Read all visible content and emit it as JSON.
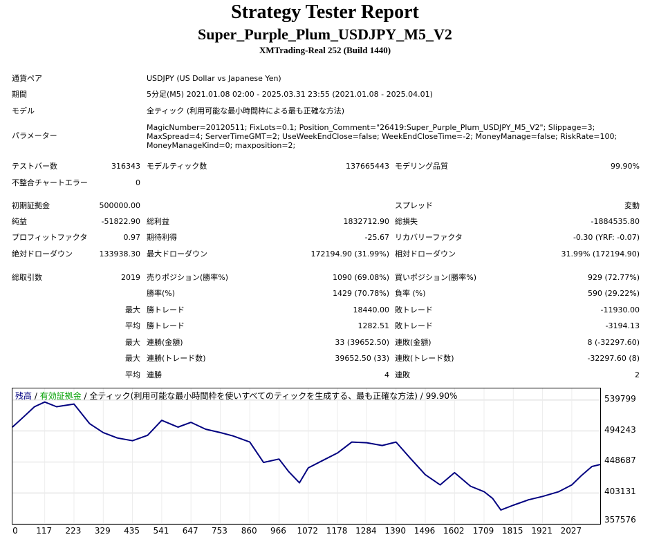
{
  "header": {
    "title": "Strategy Tester Report",
    "subtitle": "Super_Purple_Plum_USDJPY_M5_V2",
    "server": "XMTrading-Real 252 (Build 1440)"
  },
  "info": {
    "pair_label": "通貨ペア",
    "pair_value": "USDJPY (US Dollar vs Japanese Yen)",
    "period_label": "期間",
    "period_value": "5分足(M5) 2021.01.08 02:00 - 2025.03.31 23:55 (2021.01.08 - 2025.04.01)",
    "model_label": "モデル",
    "model_value": "全ティック (利用可能な最小時間枠による最も正確な方法)",
    "params_label": "パラメーター",
    "params_line1": "MagicNumber=20120511; FixLots=0.1; Position_Comment=\"26419:Super_Purple_Plum_USDJPY_M5_V2\"; Slippage=3;",
    "params_line2": "MaxSpread=4; ServerTimeGMT=2; UseWeekEndClose=false; WeekEndCloseTime=-2; MoneyManage=false; RiskRate=100;",
    "params_line3": "MoneyManageKind=0; maxposition=2;"
  },
  "stats": {
    "test_bars_label": "テストバー数",
    "test_bars": "316343",
    "model_ticks_label": "モデルティック数",
    "model_ticks": "137665443",
    "model_quality_label": "モデリング品質",
    "model_quality": "99.90%",
    "mismatch_label": "不整合チャートエラー",
    "mismatch": "0",
    "deposit_label": "初期証拠金",
    "deposit": "500000.00",
    "spread_label": "スプレッド",
    "spread": "変動",
    "net_label": "純益",
    "net": "-51822.90",
    "gross_profit_label": "総利益",
    "gross_profit": "1832712.90",
    "gross_loss_label": "総損失",
    "gross_loss": "-1884535.80",
    "pf_label": "プロフィットファクタ",
    "pf": "0.97",
    "expected_label": "期待利得",
    "expected": "-25.67",
    "recovery_label": "リカバリーファクタ",
    "recovery": "-0.30 (YRF: -0.07)",
    "abs_dd_label": "絶対ドローダウン",
    "abs_dd": "133938.30",
    "max_dd_label": "最大ドローダウン",
    "max_dd": "172194.90 (31.99%)",
    "rel_dd_label": "相対ドローダウン",
    "rel_dd": "31.99% (172194.90)",
    "total_trades_label": "総取引数",
    "total_trades": "2019",
    "short_label": "売りポジション(勝率%)",
    "short": "1090 (69.08%)",
    "long_label": "買いポジション(勝率%)",
    "long": "929 (72.77%)",
    "win_label": "勝率(%)",
    "win": "1429 (70.78%)",
    "loss_label": "負率 (%)",
    "loss": "590 (29.22%)",
    "max_label": "最大",
    "avg_label": "平均",
    "win_trade_label": "勝トレード",
    "loss_trade_label": "敗トレード",
    "max_win": "18440.00",
    "max_loss": "-11930.00",
    "avg_win": "1282.51",
    "avg_loss": "-3194.13",
    "cons_win_amt_label": "連勝(金額)",
    "cons_win_amt": "33 (39652.50)",
    "cons_loss_amt_label": "連敗(金額)",
    "cons_loss_amt": "8 (-32297.60)",
    "cons_win_cnt_label": "連勝(トレード数)",
    "cons_win_cnt": "39652.50 (33)",
    "cons_loss_cnt_label": "連敗(トレード数)",
    "cons_loss_cnt": "-32297.60 (8)",
    "avg_cons_win_label": "連勝",
    "avg_cons_win": "4",
    "avg_cons_loss_label": "連敗",
    "avg_cons_loss": "2"
  },
  "chart_legend": {
    "balance": "残高",
    "sep1": " / ",
    "equity": "有効証拠金",
    "rest": " / 全ティック(利用可能な最小時間枠を使いすべてのティックを生成する、最も正確な方法) / 99.90%",
    "balance_color": "#000080",
    "equity_color": "#00a000"
  },
  "chart_data": {
    "type": "line",
    "title": "",
    "xlabel": "",
    "ylabel": "",
    "x_ticks": [
      "0",
      "117",
      "223",
      "329",
      "435",
      "541",
      "647",
      "753",
      "860",
      "966",
      "1072",
      "1178",
      "1284",
      "1390",
      "1496",
      "1602",
      "1709",
      "1815",
      "1921",
      "2027"
    ],
    "y_ticks": [
      "539799",
      "494243",
      "448687",
      "403131",
      "357576"
    ],
    "xlim": [
      0,
      2130
    ],
    "ylim": [
      357576,
      557000
    ],
    "grid": true,
    "series": [
      {
        "color": "#000080",
        "x": [
          0,
          40,
          80,
          117,
          160,
          223,
          280,
          329,
          380,
          435,
          490,
          541,
          600,
          647,
          700,
          753,
          800,
          860,
          910,
          966,
          1000,
          1040,
          1072,
          1120,
          1178,
          1230,
          1284,
          1340,
          1390,
          1440,
          1496,
          1550,
          1602,
          1660,
          1709,
          1740,
          1770,
          1815,
          1870,
          1921,
          1980,
          2027,
          2060,
          2100,
          2130
        ],
        "y": [
          500000,
          515000,
          530000,
          537000,
          530000,
          534000,
          505000,
          492000,
          484000,
          480000,
          488000,
          510000,
          500000,
          507000,
          497000,
          492000,
          487000,
          478000,
          448000,
          453000,
          435000,
          418000,
          440000,
          450000,
          462000,
          478000,
          477000,
          473000,
          478000,
          455000,
          430000,
          415000,
          433000,
          413000,
          405000,
          395000,
          378000,
          385000,
          393000,
          398000,
          405000,
          415000,
          428000,
          442000,
          445000
        ]
      }
    ]
  }
}
